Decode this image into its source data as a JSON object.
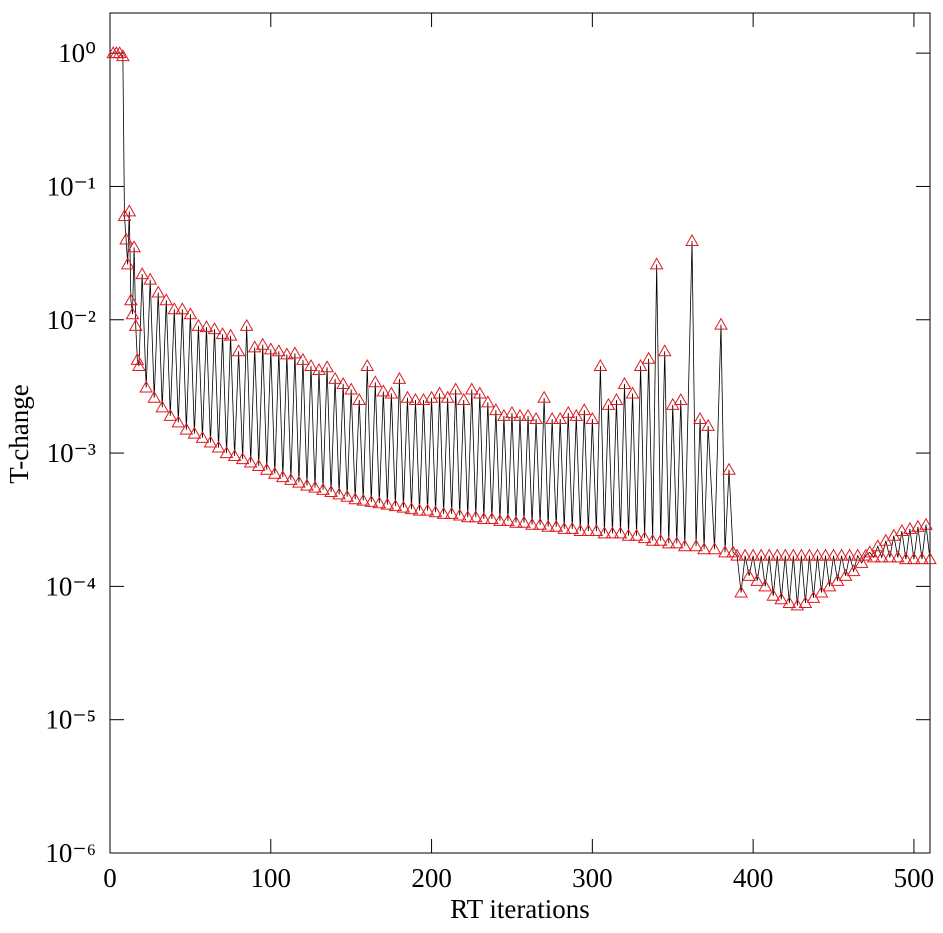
{
  "chart_data": {
    "type": "line",
    "xlabel": "RT iterations",
    "ylabel": "T-change",
    "xlim": [
      0,
      510
    ],
    "ylim": [
      1e-06,
      2
    ],
    "log_y": true,
    "xticks": [
      0,
      100,
      200,
      300,
      400,
      500
    ],
    "yticks": [
      {
        "value": 1,
        "label": "10⁰"
      },
      {
        "value": 0.1,
        "label": "10⁻¹"
      },
      {
        "value": 0.01,
        "label": "10⁻²"
      },
      {
        "value": 0.001,
        "label": "10⁻³"
      },
      {
        "value": 0.0001,
        "label": "10⁻⁴"
      },
      {
        "value": 1e-05,
        "label": "10⁻⁵"
      },
      {
        "value": 1e-06,
        "label": "10⁻⁶"
      }
    ],
    "x": [
      2,
      4,
      6,
      8,
      9,
      10,
      11,
      12,
      13,
      14,
      15,
      16,
      17,
      18,
      20,
      22.5,
      25,
      27.5,
      30,
      32.5,
      35,
      37.5,
      40,
      42.5,
      45,
      47.5,
      50,
      52.5,
      55,
      57.5,
      60,
      62.5,
      65,
      67.5,
      70,
      72.5,
      75,
      77.5,
      80,
      82.5,
      85,
      87.5,
      90,
      92.5,
      95,
      97.5,
      100,
      102.5,
      105,
      107.5,
      110,
      112.5,
      115,
      117.5,
      120,
      122.5,
      125,
      127.5,
      130,
      132.5,
      135,
      137.5,
      140,
      142.5,
      145,
      147.5,
      150,
      152.5,
      155,
      157.5,
      160,
      162.5,
      165,
      167.5,
      170,
      172.5,
      175,
      177.5,
      180,
      182.5,
      185,
      187.5,
      190,
      192.5,
      195,
      197.5,
      200,
      202.5,
      205,
      207.5,
      210,
      212.5,
      215,
      217.5,
      220,
      222.5,
      225,
      227.5,
      230,
      232.5,
      235,
      237.5,
      240,
      242.5,
      245,
      247.5,
      250,
      252.5,
      255,
      257.5,
      260,
      262.5,
      265,
      267.5,
      270,
      272.5,
      275,
      277.5,
      280,
      282.5,
      285,
      287.5,
      290,
      292.5,
      295,
      297.5,
      300,
      302.5,
      305,
      307.5,
      310,
      312.5,
      315,
      317.5,
      320,
      322.5,
      325,
      327.5,
      330,
      332.5,
      335,
      337.5,
      340,
      342.5,
      345,
      347.5,
      350,
      352.5,
      355,
      357.5,
      362,
      364.5,
      367,
      369.5,
      372,
      376,
      380,
      382.5,
      385,
      387.5,
      390,
      392.5,
      395,
      397.5,
      400,
      402.5,
      405,
      407.5,
      410,
      412.5,
      415,
      417.5,
      420,
      422.5,
      425,
      427.5,
      430,
      432.5,
      435,
      437.5,
      440,
      442.5,
      445,
      447.5,
      450,
      452.5,
      455,
      457.5,
      460,
      462.5,
      465,
      467.5,
      470,
      472.5,
      475,
      477.5,
      480,
      482.5,
      485,
      487.5,
      490,
      492.5,
      495,
      497.5,
      500,
      502.5,
      505,
      507.5,
      510
    ],
    "series": [
      {
        "name": "T-change",
        "color": "#e0191f",
        "line_color": "#000000",
        "marker": "triangle",
        "values": [
          1.0,
          1.0,
          1.0,
          0.95,
          0.06,
          0.04,
          0.026,
          0.065,
          0.014,
          0.011,
          0.035,
          0.009,
          0.005,
          0.0045,
          0.022,
          0.0031,
          0.02,
          0.0026,
          0.016,
          0.0022,
          0.014,
          0.0019,
          0.012,
          0.0017,
          0.012,
          0.0015,
          0.011,
          0.0014,
          0.009,
          0.0013,
          0.0088,
          0.0012,
          0.0085,
          0.0011,
          0.0078,
          0.001,
          0.0076,
          0.00095,
          0.0058,
          0.0009,
          0.009,
          0.00085,
          0.0062,
          0.0008,
          0.0065,
          0.00075,
          0.006,
          0.0007,
          0.0058,
          0.00066,
          0.0055,
          0.00063,
          0.0056,
          0.0006,
          0.005,
          0.00057,
          0.0045,
          0.00055,
          0.0042,
          0.00053,
          0.0044,
          0.00051,
          0.0036,
          0.00049,
          0.0033,
          0.00047,
          0.003,
          0.00045,
          0.0025,
          0.00044,
          0.0045,
          0.00043,
          0.0034,
          0.00042,
          0.0029,
          0.00041,
          0.0028,
          0.0004,
          0.0036,
          0.00039,
          0.0026,
          0.00038,
          0.0025,
          0.00037,
          0.0025,
          0.00037,
          0.0026,
          0.00036,
          0.0028,
          0.00035,
          0.0026,
          0.00035,
          0.003,
          0.00034,
          0.0025,
          0.00033,
          0.003,
          0.00033,
          0.0028,
          0.00032,
          0.0024,
          0.00032,
          0.0021,
          0.00031,
          0.0019,
          0.00031,
          0.002,
          0.0003,
          0.0019,
          0.0003,
          0.0019,
          0.00029,
          0.0018,
          0.00029,
          0.0026,
          0.00028,
          0.0018,
          0.00028,
          0.0018,
          0.00027,
          0.002,
          0.00027,
          0.0019,
          0.00026,
          0.0021,
          0.00026,
          0.0018,
          0.00026,
          0.0045,
          0.00025,
          0.0023,
          0.00025,
          0.0025,
          0.00025,
          0.0033,
          0.00024,
          0.0028,
          0.00024,
          0.0045,
          0.00023,
          0.0051,
          0.00022,
          0.026,
          0.00022,
          0.0058,
          0.00021,
          0.0023,
          0.00021,
          0.0025,
          0.0002,
          0.039,
          0.0002,
          0.0018,
          0.00019,
          0.0016,
          0.00019,
          0.0092,
          0.00018,
          0.00075,
          0.00018,
          0.00017,
          9e-05,
          0.00017,
          0.00012,
          0.00017,
          0.00011,
          0.00017,
          0.0001,
          0.00017,
          8.5e-05,
          0.00017,
          8e-05,
          0.00017,
          7.5e-05,
          0.00017,
          7.2e-05,
          0.00017,
          7.5e-05,
          0.00017,
          8.2e-05,
          0.00017,
          9e-05,
          0.00017,
          0.0001,
          0.00017,
          0.00011,
          0.00017,
          0.00012,
          0.00017,
          0.00013,
          0.00017,
          0.00015,
          0.00017,
          0.00018,
          0.000165,
          0.0002,
          0.000165,
          0.00022,
          0.000165,
          0.00024,
          0.000165,
          0.00026,
          0.00016,
          0.00027,
          0.00016,
          0.00028,
          0.00016,
          0.00029,
          0.00016
        ]
      }
    ]
  }
}
